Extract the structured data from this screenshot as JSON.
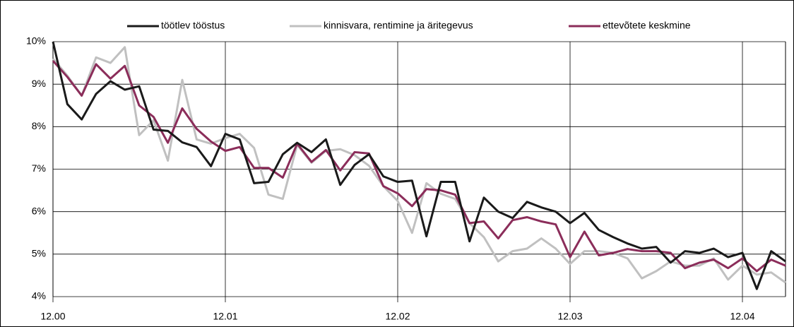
{
  "chart_data": {
    "type": "line",
    "categories": [
      "12.00",
      null,
      null,
      null,
      null,
      null,
      null,
      null,
      null,
      null,
      null,
      null,
      "12.01",
      null,
      null,
      null,
      null,
      null,
      null,
      null,
      null,
      null,
      null,
      null,
      "12.02",
      null,
      null,
      null,
      null,
      null,
      null,
      null,
      null,
      null,
      null,
      null,
      "12.03",
      null,
      null,
      null,
      null,
      null,
      null,
      null,
      null,
      null,
      null,
      null,
      "12.04",
      null,
      null,
      null
    ],
    "series": [
      {
        "name": "töötlev tööstus",
        "color": "#1a1a1a",
        "values": [
          10.0,
          8.53,
          8.17,
          8.77,
          9.07,
          8.87,
          8.95,
          7.93,
          7.9,
          7.63,
          7.52,
          7.07,
          7.83,
          7.7,
          6.67,
          6.7,
          7.35,
          7.62,
          7.4,
          7.7,
          6.63,
          7.1,
          7.35,
          6.83,
          6.7,
          6.73,
          5.42,
          6.7,
          6.7,
          5.3,
          6.33,
          6.0,
          5.85,
          6.23,
          6.1,
          6.0,
          5.73,
          5.97,
          5.57,
          5.4,
          5.25,
          5.13,
          5.17,
          4.8,
          5.07,
          5.03,
          5.13,
          4.93,
          5.03,
          4.18,
          5.07,
          4.83
        ]
      },
      {
        "name": "kinnisvara, rentimine ja äritegevus",
        "color": "#c0c0c0",
        "values": [
          9.6,
          9.2,
          8.73,
          9.63,
          9.5,
          9.87,
          7.8,
          8.15,
          7.2,
          9.1,
          7.7,
          7.6,
          7.73,
          7.83,
          7.5,
          6.4,
          6.3,
          7.57,
          7.15,
          7.43,
          7.47,
          7.33,
          7.08,
          6.6,
          6.25,
          5.5,
          6.67,
          6.42,
          6.3,
          5.73,
          5.4,
          4.83,
          5.07,
          5.13,
          5.37,
          5.13,
          4.77,
          5.07,
          5.07,
          5.03,
          4.9,
          4.43,
          4.6,
          4.83,
          4.73,
          4.73,
          4.9,
          4.4,
          4.73,
          4.52,
          4.57,
          4.33
        ]
      },
      {
        "name": "ettevõtete keskmine",
        "color": "#8b2d5a",
        "values": [
          9.55,
          9.17,
          8.73,
          9.47,
          9.13,
          9.43,
          8.5,
          8.23,
          7.62,
          8.43,
          7.95,
          7.65,
          7.43,
          7.52,
          7.03,
          7.03,
          6.8,
          7.6,
          7.17,
          7.45,
          6.97,
          7.4,
          7.37,
          6.6,
          6.43,
          6.13,
          6.53,
          6.5,
          6.4,
          5.73,
          5.77,
          5.37,
          5.8,
          5.87,
          5.77,
          5.7,
          4.93,
          5.53,
          4.97,
          5.03,
          5.12,
          5.07,
          5.07,
          5.03,
          4.67,
          4.8,
          4.87,
          4.67,
          4.9,
          4.6,
          4.87,
          4.73
        ]
      }
    ],
    "ylim": [
      4,
      10
    ],
    "yticks": [
      {
        "value": 4,
        "label": "4%"
      },
      {
        "value": 5,
        "label": "5%"
      },
      {
        "value": 6,
        "label": "6%"
      },
      {
        "value": 7,
        "label": "7%"
      },
      {
        "value": 8,
        "label": "8%"
      },
      {
        "value": 9,
        "label": "9%"
      },
      {
        "value": 10,
        "label": "10%"
      }
    ],
    "grid": true,
    "legend": "top"
  }
}
